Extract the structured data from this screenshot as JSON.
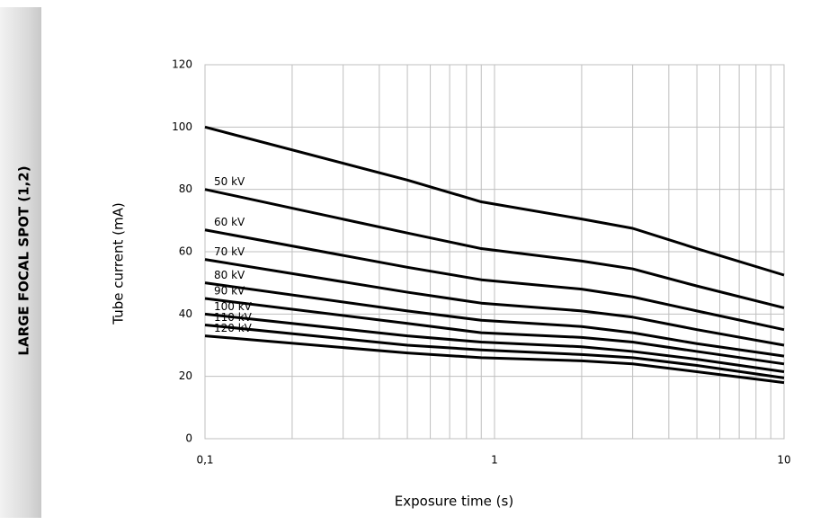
{
  "sidebar_label": "LARGE FOCAL SPOT (1,2)",
  "chart_data": {
    "type": "line",
    "xlabel": "Exposure time (s)",
    "ylabel": "Tube current (mA)",
    "x": [
      0.1,
      0.5,
      0.9,
      2,
      3,
      5,
      10
    ],
    "series": [
      {
        "color": "#000000",
        "values": [
          100,
          83,
          76,
          70.5,
          67.5,
          61,
          52.5
        ]
      },
      {
        "name": "50 kV",
        "color": "#000000",
        "values": [
          80,
          66,
          61,
          57,
          54.5,
          49,
          42
        ]
      },
      {
        "name": "60 kV",
        "color": "#000000",
        "values": [
          67,
          55,
          51,
          48,
          45.5,
          41,
          35
        ]
      },
      {
        "name": "70 kV",
        "color": "#000000",
        "values": [
          57.5,
          47,
          43.5,
          41,
          39,
          35,
          30
        ]
      },
      {
        "name": "80 kV",
        "color": "#000000",
        "values": [
          50,
          41,
          38,
          36,
          34,
          30.5,
          26.5
        ]
      },
      {
        "name": "90 kV",
        "color": "#000000",
        "values": [
          45,
          37,
          34,
          32.5,
          31,
          28,
          24
        ]
      },
      {
        "name": "100 kV",
        "color": "#000000",
        "values": [
          40,
          33,
          31,
          29.5,
          28,
          25.5,
          21.5
        ]
      },
      {
        "name": "110 kV",
        "color": "#000000",
        "values": [
          36.5,
          30,
          28.5,
          27,
          26,
          23.5,
          19.5
        ]
      },
      {
        "name": "120 kV",
        "color": "#000000",
        "values": [
          33,
          27.5,
          26,
          25,
          24,
          21.5,
          18
        ]
      }
    ],
    "xscale": "log",
    "xlim": [
      0.1,
      10
    ],
    "ylim": [
      0,
      120
    ],
    "xticks": [
      {
        "value": 0.1,
        "label": "0,1"
      },
      1,
      10
    ],
    "x_minor_grid": [
      0.2,
      0.3,
      0.4,
      0.5,
      0.6,
      0.7,
      0.8,
      0.9,
      2,
      3,
      4,
      5,
      6,
      7,
      8,
      9
    ],
    "yticks": [
      0,
      20,
      40,
      60,
      80,
      100,
      120
    ],
    "grid": true
  }
}
